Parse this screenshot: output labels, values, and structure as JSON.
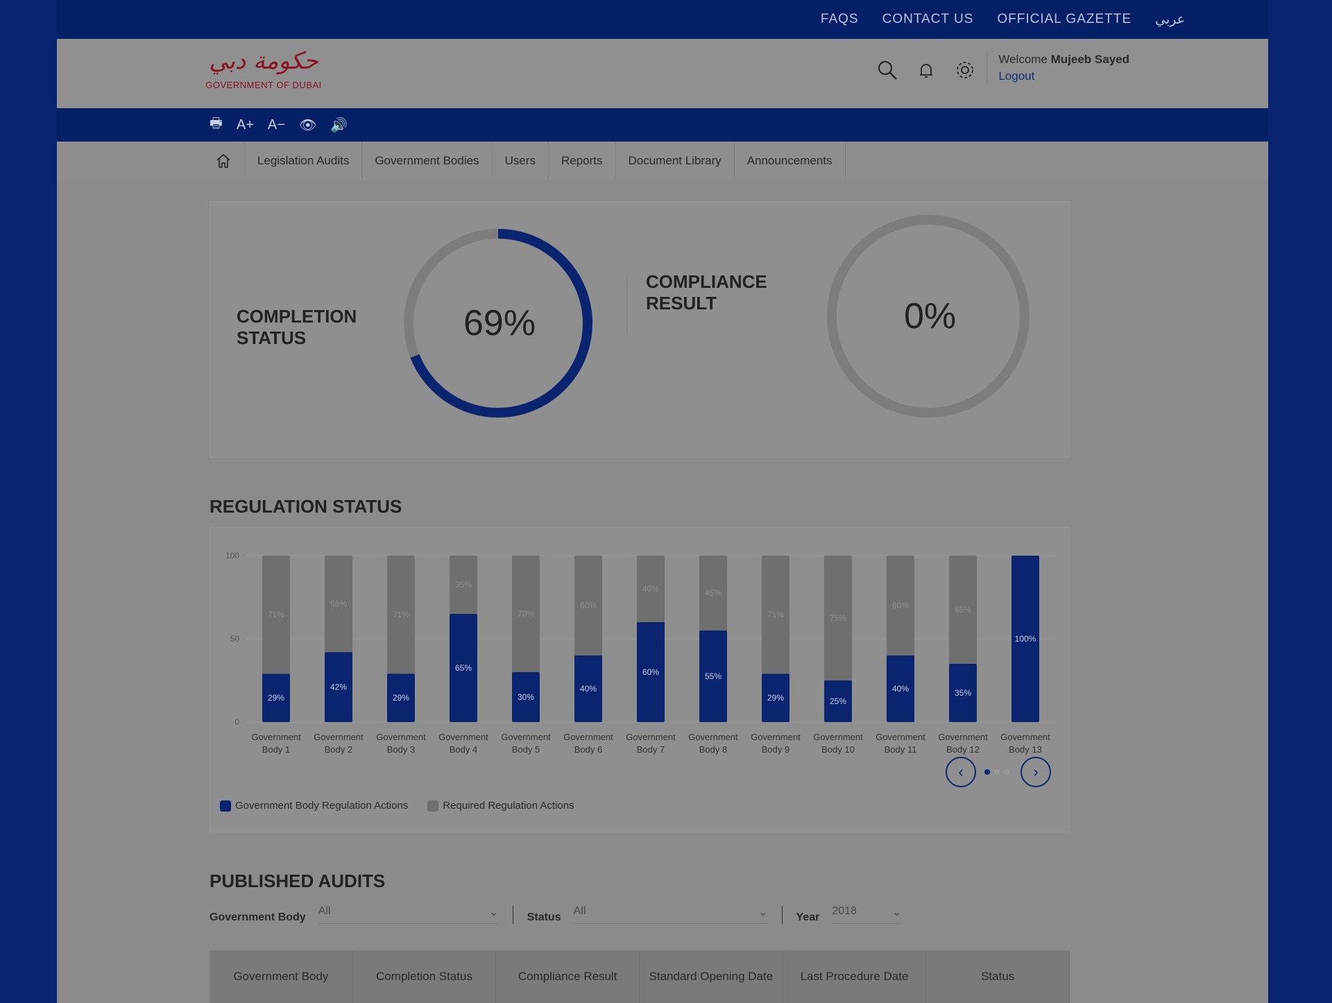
{
  "top_links": [
    "FAQS",
    "CONTACT US",
    "OFFICIAL GAZETTE",
    "عربي"
  ],
  "logo": {
    "arabic": "حكومة دبي",
    "english": "GOVERNMENT OF DUBAI"
  },
  "header_icons": [
    "search-icon",
    "bell-icon",
    "gear-icon"
  ],
  "user": {
    "welcome": "Welcome",
    "name": "Mujeeb Sayed",
    "logout": "Logout"
  },
  "accessibility": [
    "🖶",
    "A+",
    "A−",
    "👁",
    "🔊"
  ],
  "menu": [
    "Legislation Audits",
    "Government Bodies",
    "Users",
    "Reports",
    "Document Library",
    "Announcements"
  ],
  "completion": {
    "label_1": "COMPLETION",
    "label_2": "STATUS",
    "value": "69%",
    "percent": 69
  },
  "compliance": {
    "label_1": "COMPLIANCE",
    "label_2": "RESULT",
    "value": "0%",
    "percent": 0
  },
  "colors": {
    "primary": "#0a2470",
    "gray_bar": "#6f6f6f"
  },
  "regulation_title": "REGULATION STATUS",
  "chart_data": {
    "type": "bar",
    "stacked": true,
    "categories": [
      "Government Body 1",
      "Government Body 2",
      "Government Body 3",
      "Government Body 4",
      "Government Body 5",
      "Government Body 6",
      "Government Body 7",
      "Government Body 8",
      "Government Body 9",
      "Government Body 10",
      "Government Body 11",
      "Government Body 12",
      "Government Body 13"
    ],
    "series": [
      {
        "name": "Government Body Regulation Actions",
        "values": [
          29,
          42,
          29,
          65,
          30,
          40,
          60,
          55,
          29,
          25,
          40,
          35,
          100
        ],
        "labels": [
          "29%",
          "42%",
          "29%",
          "65%",
          "30%",
          "40%",
          "60%",
          "55%",
          "29%",
          "25%",
          "40%",
          "35%",
          "100%"
        ]
      },
      {
        "name": "Required Regulation Actions",
        "values": [
          71,
          58,
          71,
          35,
          70,
          60,
          40,
          45,
          71,
          75,
          60,
          65,
          0
        ],
        "labels": [
          "71%",
          "58%",
          "71%",
          "35%",
          "70%",
          "60%",
          "40%",
          "45%",
          "71%",
          "75%",
          "60%",
          "65%",
          ""
        ]
      }
    ],
    "yticks": [
      0,
      50,
      100
    ],
    "ylim": [
      0,
      100
    ],
    "grid": true,
    "legend": "bottom-left"
  },
  "pagination": {
    "pages": 3,
    "current": 1
  },
  "audits": {
    "title": "PUBLISHED AUDITS",
    "filters": [
      {
        "label": "Government Body",
        "value": "All"
      },
      {
        "label": "Status",
        "value": "All"
      },
      {
        "label": "Year",
        "value": "2018"
      }
    ],
    "columns": [
      "Government Body",
      "Completion Status",
      "Compliance Result",
      "Standard Opening Date",
      "Last Procedure Date",
      "Status"
    ]
  }
}
